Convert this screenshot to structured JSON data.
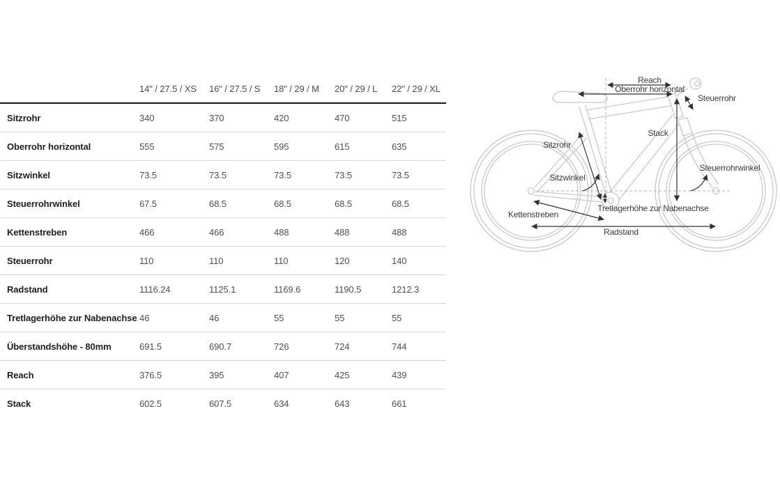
{
  "table": {
    "columns": [
      "14\" / 27.5 / XS",
      "16\" / 27.5 / S",
      "18\" / 29 / M",
      "20\" / 29 / L",
      "22\" / 29 / XL"
    ],
    "rows": [
      {
        "label": "Sitzrohr",
        "values": [
          "340",
          "370",
          "420",
          "470",
          "515"
        ]
      },
      {
        "label": "Oberrohr horizontal",
        "values": [
          "555",
          "575",
          "595",
          "615",
          "635"
        ]
      },
      {
        "label": "Sitzwinkel",
        "values": [
          "73.5",
          "73.5",
          "73.5",
          "73.5",
          "73.5"
        ]
      },
      {
        "label": "Steuerrohrwinkel",
        "values": [
          "67.5",
          "68.5",
          "68.5",
          "68.5",
          "68.5"
        ]
      },
      {
        "label": "Kettenstreben",
        "values": [
          "466",
          "466",
          "488",
          "488",
          "488"
        ]
      },
      {
        "label": "Steuerrohr",
        "values": [
          "110",
          "110",
          "110",
          "120",
          "140"
        ]
      },
      {
        "label": "Radstand",
        "values": [
          "1116.24",
          "1125.1",
          "1169.6",
          "1190.5",
          "1212.3"
        ]
      },
      {
        "label": "Tretlagerhöhe zur Nabenachse",
        "values": [
          "46",
          "46",
          "55",
          "55",
          "55"
        ]
      },
      {
        "label": "Überstandshöhe - 80mm",
        "values": [
          "691.5",
          "690.7",
          "726",
          "724",
          "744"
        ]
      },
      {
        "label": "Reach",
        "values": [
          "376.5",
          "395",
          "407",
          "425",
          "439"
        ]
      },
      {
        "label": "Stack",
        "values": [
          "602.5",
          "607.5",
          "634",
          "643",
          "661"
        ]
      }
    ]
  },
  "diagram": {
    "labels": {
      "reach": "Reach",
      "oberrohr": "Oberrohr horizontal",
      "steuerrohr": "Steuerrohr",
      "stack": "Stack",
      "sitzrohr": "Sitzrohr",
      "sitzwinkel": "Sitzwinkel",
      "steuerrohrwinkel": "Steuerrohrwinkel",
      "tretlagerhoehe": "Tretlagerhöhe zur Nabenachse",
      "kettenstreben": "Kettenstreben",
      "radstand": "Radstand"
    }
  },
  "colors": {
    "header_rule": "#161616",
    "row_divider": "#dadada",
    "row_label_text": "#1e1e1e",
    "value_text": "#4f4f4f",
    "column_header_text": "#4c4c4c",
    "bike_outline": "#c9c9c9",
    "annotation": "#333333",
    "dashed_guides": "#b3b3b3"
  }
}
